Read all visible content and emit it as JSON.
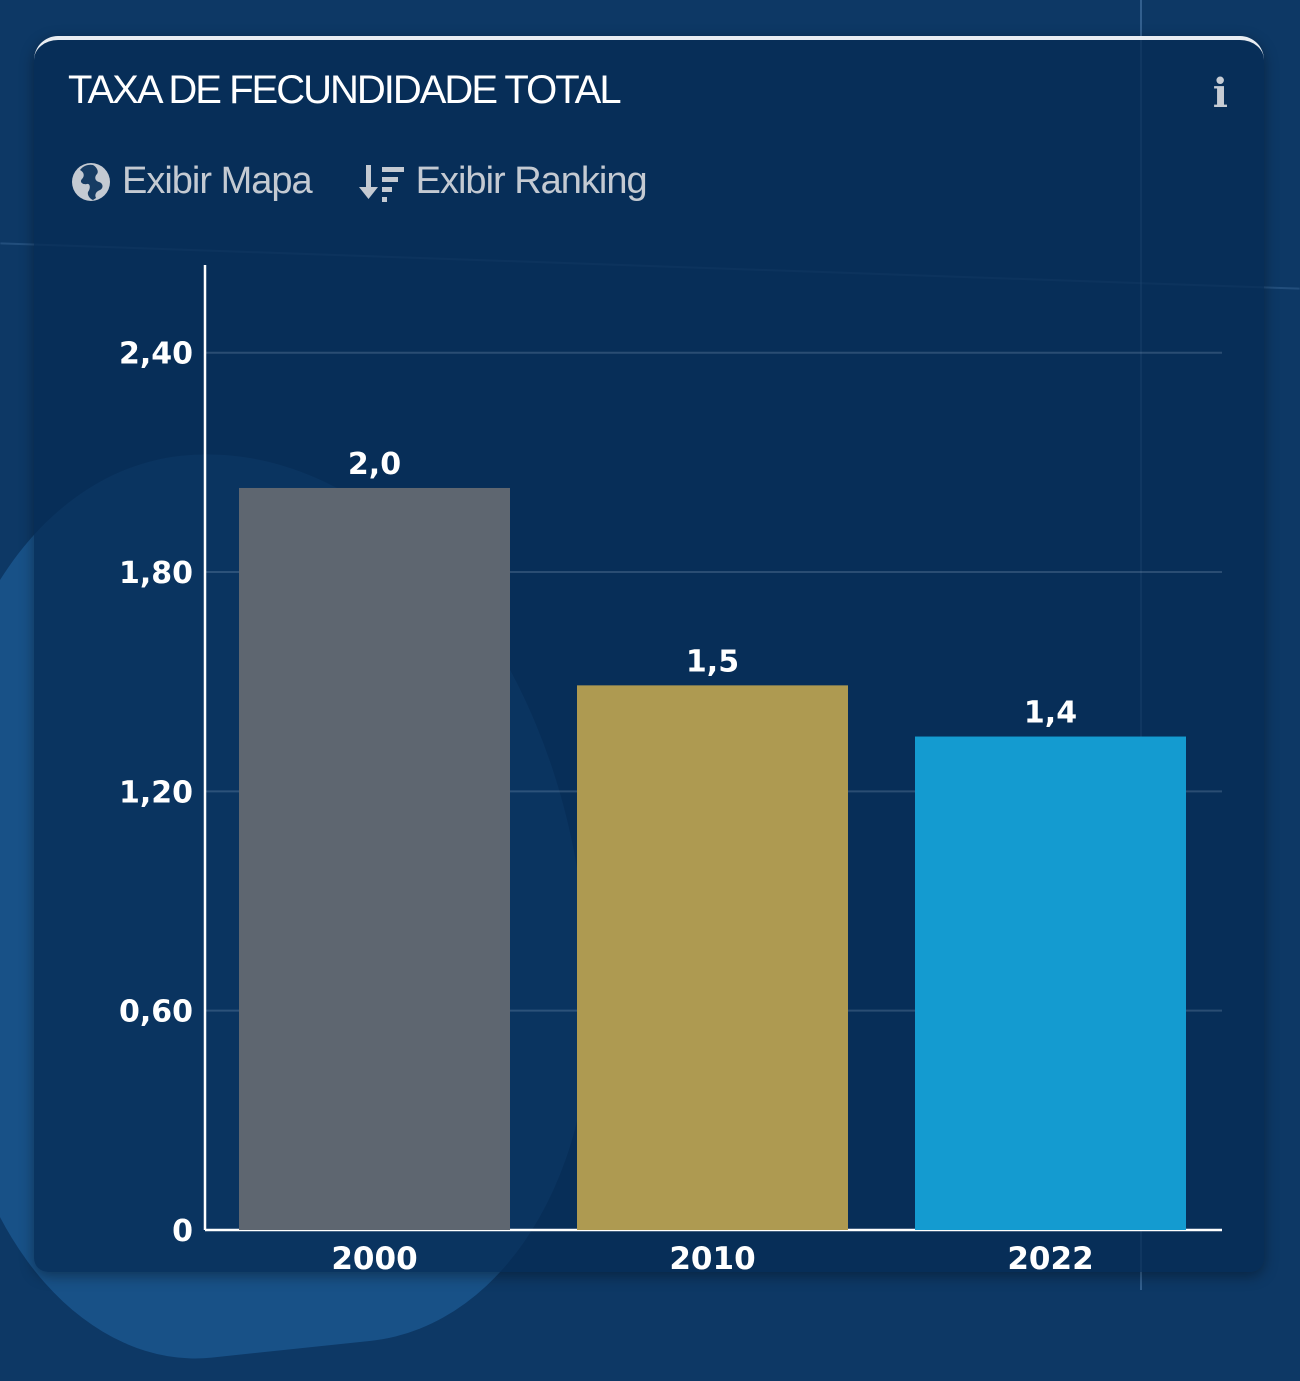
{
  "card": {
    "title": "TAXA DE FECUNDIDADE TOTAL",
    "info_icon": "info-icon",
    "actions": [
      {
        "label": "Exibir Mapa",
        "icon": "globe-icon"
      },
      {
        "label": "Exibir Ranking",
        "icon": "sort-descending-icon"
      }
    ]
  },
  "colors": {
    "background": "#0d3865",
    "card": "#082e58",
    "bar_2000": "#5e6670",
    "bar_2010": "#ae9a51",
    "bar_2022": "#149bd0"
  },
  "chart_data": {
    "type": "bar",
    "categories": [
      "2000",
      "2010",
      "2022"
    ],
    "values": [
      2.03,
      1.49,
      1.35
    ],
    "value_labels": [
      "2,0",
      "1,5",
      "1,4"
    ],
    "ylim": [
      0,
      2.64
    ],
    "y_ticks": [
      0,
      0.6,
      1.2,
      1.8,
      2.4
    ],
    "y_tick_labels": [
      "0",
      "0,60",
      "1,20",
      "1,80",
      "2,40"
    ],
    "bar_colors": [
      "#5e6670",
      "#ae9a51",
      "#149bd0"
    ],
    "grid": true,
    "legend": "none"
  }
}
